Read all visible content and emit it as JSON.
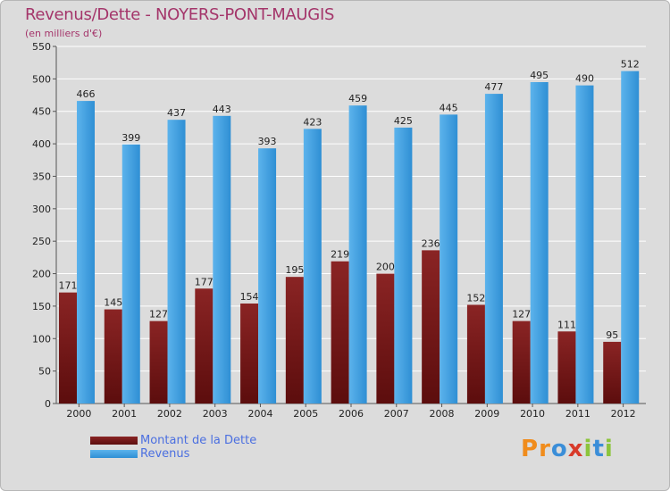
{
  "title": "Revenus/Dette - NOYERS-PONT-MAUGIS",
  "subtitle": "(en milliers d'€)",
  "legend": {
    "dette_label": "Montant de la Dette",
    "revenus_label": "Revenus"
  },
  "logo": {
    "text": "Proxiti",
    "letters": [
      "P",
      "r",
      "o",
      "x",
      "i",
      "t",
      "i"
    ]
  },
  "colors": {
    "dette": "#7a1a1a",
    "revenus": "#3a9de0",
    "title": "#a4356a",
    "legend_text": "#4b6fe0",
    "logo_letters": [
      "#f08c1c",
      "#f08c1c",
      "#3b8ed8",
      "#d83a2a",
      "#8cc43c",
      "#3b8ed8",
      "#8cc43c"
    ]
  },
  "chart_data": {
    "type": "bar",
    "title": "Revenus/Dette - NOYERS-PONT-MAUGIS",
    "ylabel": "(en milliers d'€)",
    "xlabel": "",
    "categories": [
      "2000",
      "2001",
      "2002",
      "2003",
      "2004",
      "2005",
      "2006",
      "2007",
      "2008",
      "2009",
      "2010",
      "2011",
      "2012"
    ],
    "series": [
      {
        "name": "Montant de la Dette",
        "values": [
          171,
          145,
          127,
          177,
          154,
          195,
          219,
          200,
          236,
          152,
          127,
          111,
          95
        ]
      },
      {
        "name": "Revenus",
        "values": [
          466,
          399,
          437,
          443,
          393,
          423,
          459,
          425,
          445,
          477,
          495,
          490,
          512
        ]
      }
    ],
    "ylim": [
      0,
      550
    ],
    "yticks": [
      0,
      50,
      100,
      150,
      200,
      250,
      300,
      350,
      400,
      450,
      500,
      550
    ],
    "grid": true,
    "legend_position": "bottom-left"
  }
}
